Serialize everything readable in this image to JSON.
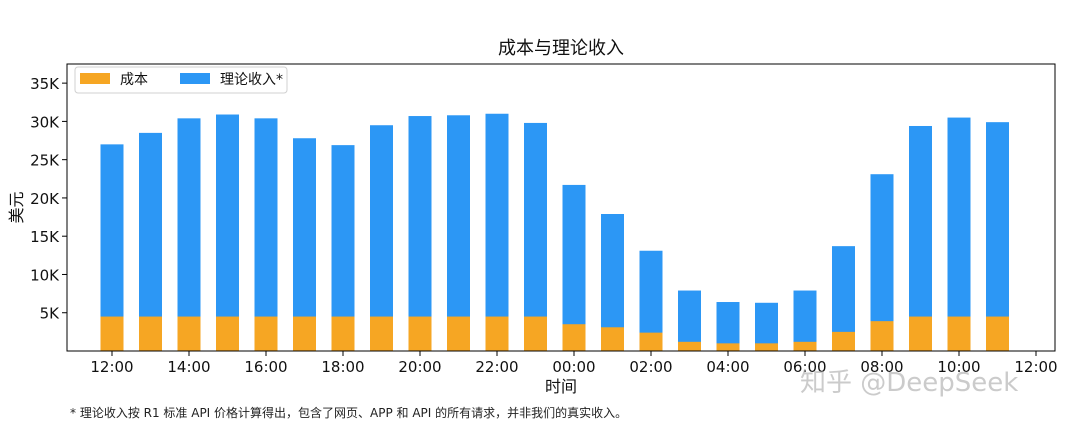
{
  "chart_data": {
    "type": "bar",
    "title": "成本与理论收入",
    "xlabel": "时间",
    "ylabel": "美元",
    "categories": [
      "12:00",
      "13:00",
      "14:00",
      "15:00",
      "16:00",
      "17:00",
      "18:00",
      "19:00",
      "20:00",
      "21:00",
      "22:00",
      "23:00",
      "00:00",
      "01:00",
      "02:00",
      "03:00",
      "04:00",
      "05:00",
      "06:00",
      "07:00",
      "08:00",
      "09:00",
      "10:00",
      "11:00",
      "12:00"
    ],
    "x_tick_labels": [
      "12:00",
      "14:00",
      "16:00",
      "18:00",
      "20:00",
      "22:00",
      "00:00",
      "02:00",
      "04:00",
      "06:00",
      "08:00",
      "10:00",
      "12:00"
    ],
    "y_tick_labels": [
      "5K",
      "10K",
      "15K",
      "20K",
      "25K",
      "30K",
      "35K"
    ],
    "y_ticks": [
      5000,
      10000,
      15000,
      20000,
      25000,
      30000,
      35000
    ],
    "ylim": [
      0,
      37500
    ],
    "legend_position": "top-left",
    "series": [
      {
        "name": "理论收入*",
        "color": "#2c97f5",
        "values": [
          27000,
          28500,
          30400,
          30900,
          30400,
          27800,
          26900,
          29500,
          30700,
          30800,
          31000,
          29800,
          21700,
          17900,
          13100,
          7900,
          6400,
          6300,
          7900,
          13700,
          23100,
          29400,
          30500,
          29900,
          null
        ]
      },
      {
        "name": "成本",
        "color": "#f6a623",
        "values": [
          4500,
          4500,
          4500,
          4500,
          4500,
          4500,
          4500,
          4500,
          4500,
          4500,
          4500,
          4500,
          3500,
          3100,
          2400,
          1200,
          1000,
          1000,
          1200,
          2500,
          3900,
          4500,
          4500,
          4500,
          null
        ]
      }
    ]
  },
  "footnote": "* 理论收入按 R1 标准 API 价格计算得出，包含了网页、APP 和 API 的所有请求，并非我们的真实收入。",
  "watermark": "知乎 @DeepSeek"
}
